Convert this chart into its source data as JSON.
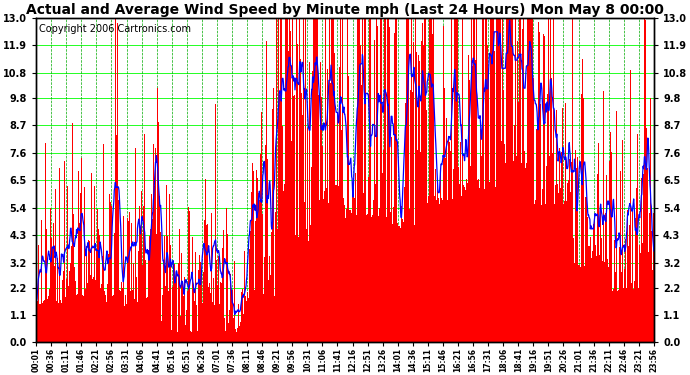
{
  "title": "Actual and Average Wind Speed by Minute mph (Last 24 Hours) Mon May 8 00:00",
  "copyright": "Copyright 2006 Cartronics.com",
  "yticks": [
    0.0,
    1.1,
    2.2,
    3.2,
    4.3,
    5.4,
    6.5,
    7.6,
    8.7,
    9.8,
    10.8,
    11.9,
    13.0
  ],
  "ymin": 0.0,
  "ymax": 13.0,
  "background_color": "#ffffff",
  "plot_bg_color": "#ffffff",
  "bar_color": "#ff0000",
  "line_color": "#0000ff",
  "grid_color_h": "#00ff00",
  "grid_color_v": "#00aa00",
  "title_fontsize": 10,
  "copyright_fontsize": 7,
  "num_minutes": 1440,
  "seed": 42,
  "xtick_labels": [
    "00:01",
    "00:36",
    "01:11",
    "01:46",
    "02:21",
    "02:56",
    "03:31",
    "04:06",
    "04:41",
    "05:16",
    "05:51",
    "06:26",
    "07:01",
    "07:36",
    "08:11",
    "08:46",
    "09:21",
    "09:56",
    "10:31",
    "11:06",
    "11:41",
    "12:16",
    "12:51",
    "13:26",
    "14:01",
    "14:36",
    "15:11",
    "15:46",
    "16:21",
    "16:56",
    "17:31",
    "18:06",
    "18:41",
    "19:16",
    "19:51",
    "20:26",
    "21:01",
    "21:36",
    "22:11",
    "22:46",
    "23:21",
    "23:56"
  ]
}
